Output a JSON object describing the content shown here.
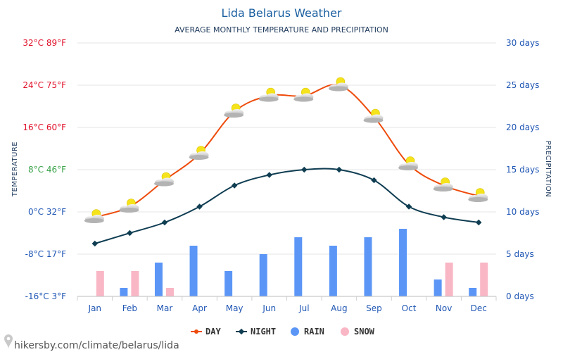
{
  "chart_data": {
    "type": "line+bar",
    "title": "Lida Belarus Weather",
    "subtitle": "AVERAGE MONTHLY TEMPERATURE AND PRECIPITATION",
    "categories": [
      "Jan",
      "Feb",
      "Mar",
      "Apr",
      "May",
      "Jun",
      "Jul",
      "Aug",
      "Sep",
      "Oct",
      "Nov",
      "Dec"
    ],
    "series": [
      {
        "name": "DAY",
        "kind": "line",
        "axis": "left",
        "unit": "°C",
        "color": "#ee4b0b",
        "values": [
          -1,
          1,
          6,
          11,
          19,
          22,
          22,
          24,
          18,
          9,
          5,
          3
        ]
      },
      {
        "name": "NIGHT",
        "kind": "line",
        "axis": "left",
        "unit": "°C",
        "color": "#0f3d52",
        "values": [
          -6,
          -4,
          -2,
          1,
          5,
          7,
          8,
          8,
          6,
          1,
          -1,
          -2
        ]
      },
      {
        "name": "RAIN",
        "kind": "bar",
        "axis": "right",
        "unit": "days",
        "color": "#5b96f7",
        "values": [
          0,
          1,
          4,
          6,
          3,
          5,
          7,
          6,
          7,
          8,
          2,
          1
        ]
      },
      {
        "name": "SNOW",
        "kind": "bar",
        "axis": "right",
        "unit": "days",
        "color": "#f9b6c5",
        "values": [
          3,
          3,
          1,
          0,
          0,
          0,
          0,
          0,
          0,
          0,
          4,
          4
        ]
      }
    ],
    "ylabel": "TEMPERATURE",
    "y2label": "PRECIPITATION",
    "ylim": [
      -16,
      32
    ],
    "y2lim": [
      0,
      30
    ],
    "yticks": [
      {
        "c": -16,
        "label": "-16°C 3°F",
        "color": "#1f56b4"
      },
      {
        "c": -8,
        "label": "-8°C 17°F",
        "color": "#1f56b4"
      },
      {
        "c": 0,
        "label": "0°C 32°F",
        "color": "#1f56b4"
      },
      {
        "c": 8,
        "label": "8°C 46°F",
        "color": "#3aa34a"
      },
      {
        "c": 16,
        "label": "16°C 60°F",
        "color": "#e0102a"
      },
      {
        "c": 24,
        "label": "24°C 75°F",
        "color": "#e0102a"
      },
      {
        "c": 32,
        "label": "32°C 89°F",
        "color": "#e0102a"
      }
    ],
    "y2ticks": [
      {
        "v": 0,
        "label": "0 days"
      },
      {
        "v": 5,
        "label": "5 days"
      },
      {
        "v": 10,
        "label": "10 days"
      },
      {
        "v": 15,
        "label": "15 days"
      },
      {
        "v": 20,
        "label": "20 days"
      },
      {
        "v": 25,
        "label": "25 days"
      },
      {
        "v": 30,
        "label": "30 days"
      }
    ],
    "legend": [
      "DAY",
      "NIGHT",
      "RAIN",
      "SNOW"
    ],
    "legend_position": "bottom-center",
    "grid": true
  },
  "source": "hikersby.com/climate/belarus/lida",
  "colors": {
    "axis_text": "#1f56b4",
    "grid": "#e6e6e6",
    "sun": "#f5e31c",
    "cloud": "#bdbdbd"
  },
  "icons": {
    "weather": "partly-cloudy-icon",
    "source": "location-pin-icon"
  }
}
